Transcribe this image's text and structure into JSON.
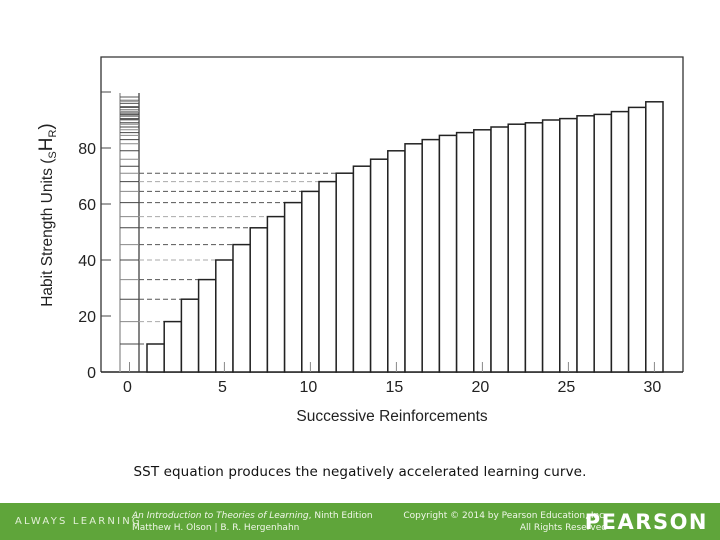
{
  "chart_data": {
    "type": "bar",
    "title": "",
    "xlabel": "Successive Reinforcements",
    "ylabel": "Habit Strength Units (sHR)",
    "ylabel_parts": {
      "main": "Habit Strength Units (",
      "sub_left": "S",
      "main2": "H",
      "sub_right": "R",
      "close": ")"
    },
    "x": [
      1,
      2,
      3,
      4,
      5,
      6,
      7,
      8,
      9,
      10,
      11,
      12,
      13,
      14,
      15,
      16,
      17,
      18,
      19,
      20,
      21,
      22,
      23,
      24,
      25,
      26,
      27,
      28,
      29,
      30
    ],
    "values": [
      10,
      18,
      26,
      33,
      40,
      45.5,
      51.5,
      55.5,
      60.5,
      64.5,
      68,
      71,
      73.5,
      76,
      79,
      81.5,
      83,
      84.5,
      85.5,
      86.5,
      87.5,
      88.5,
      89,
      90,
      90.5,
      91.5,
      92,
      93,
      94.5,
      96.5
    ],
    "xticks": [
      0,
      5,
      10,
      15,
      20,
      25,
      30
    ],
    "yticks": [
      0,
      20,
      40,
      60,
      80
    ],
    "ylim": [
      0,
      112
    ],
    "xlim": [
      -1,
      31
    ],
    "grid": false,
    "legend": null,
    "annotations": [
      "Cumulative increment ladder at x=0 with dashed guide lines to bars 1–12"
    ],
    "dashed_guides_count": 12
  },
  "caption": "SST equation produces the negatively accelerated learning curve.",
  "footer": {
    "tagline": "ALWAYS LEARNING",
    "book_title": "An Introduction to Theories of Learning",
    "edition": ", Ninth Edition",
    "authors": "Matthew H. Olson | B. R. Hergenhahn",
    "copyright": "Copyright © 2014 by Pearson Education, Inc.",
    "rights": "All Rights Reserved",
    "brand": "PEARSON",
    "color": "#5fa53a"
  }
}
